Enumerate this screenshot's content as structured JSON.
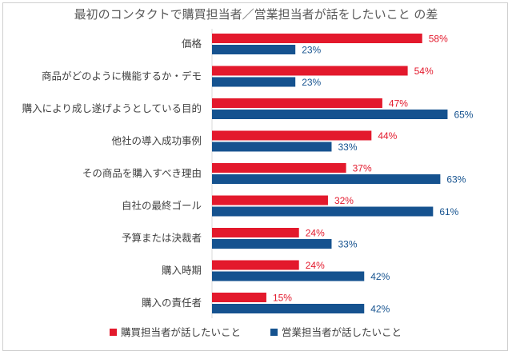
{
  "chart_data": {
    "type": "bar",
    "orientation": "horizontal",
    "title": "最初のコンタクトで購買担当者／営業担当者が話をしたいこと の差",
    "categories": [
      "価格",
      "商品がどのように機能するか・デモ",
      "購入により成し遂げようとしている目的",
      "他社の導入成功事例",
      "その商品を購入すべき理由",
      "自社の最終ゴール",
      "予算または決裁者",
      "購入時期",
      "購入の責任者"
    ],
    "series": [
      {
        "name": "購買担当者が話したいこと",
        "color": "#e3192c",
        "values": [
          58,
          54,
          47,
          44,
          37,
          32,
          24,
          24,
          15
        ],
        "labels": [
          "58%",
          "54%",
          "47%",
          "44%",
          "37%",
          "32%",
          "24%",
          "24%",
          "15%"
        ]
      },
      {
        "name": "営業担当者が話したいこと",
        "color": "#15528f",
        "values": [
          23,
          23,
          65,
          33,
          63,
          61,
          33,
          42,
          42
        ],
        "labels": [
          "23%",
          "23%",
          "65%",
          "33%",
          "63%",
          "61%",
          "33%",
          "42%",
          "42%"
        ]
      }
    ],
    "xlim": [
      0,
      70
    ],
    "legend_position": "bottom",
    "grid": false
  }
}
